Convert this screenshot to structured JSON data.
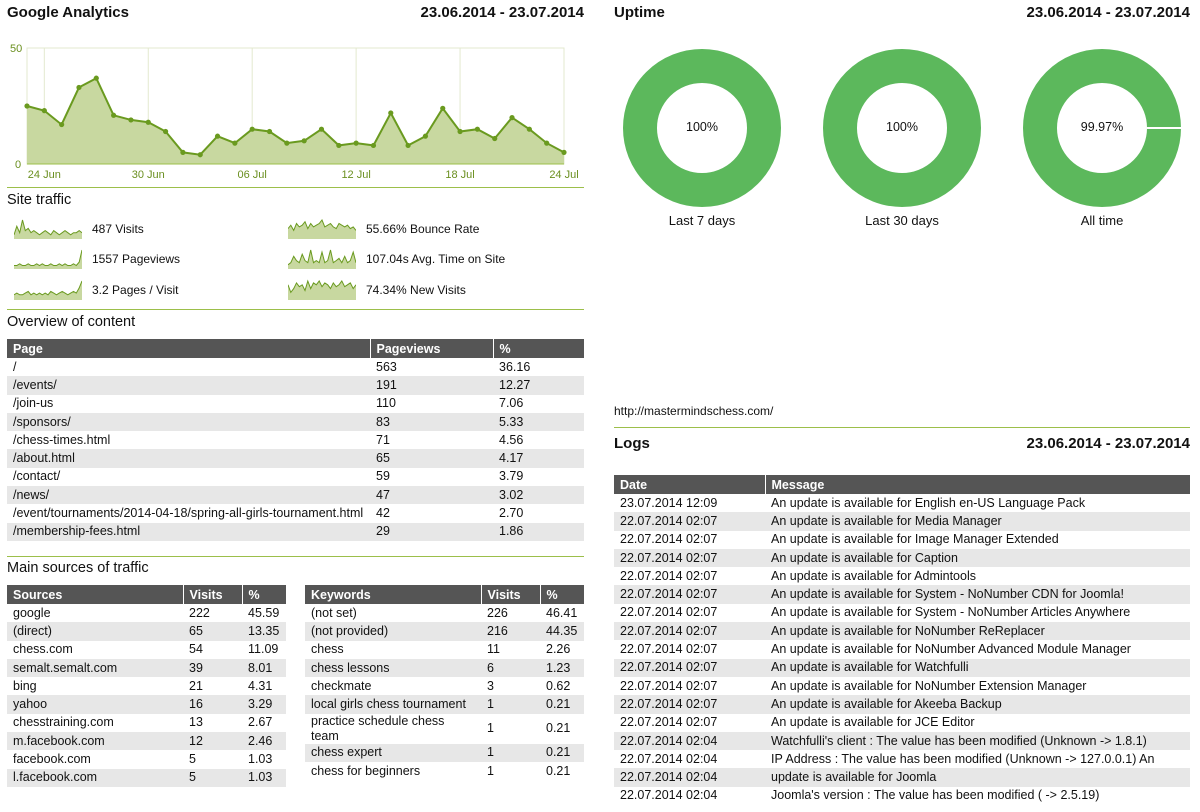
{
  "ga": {
    "title": "Google Analytics",
    "range": "23.06.2014 - 23.07.2014",
    "chart_data": {
      "type": "area",
      "x": [
        "23 Jun",
        "24 Jun",
        "25 Jun",
        "26 Jun",
        "27 Jun",
        "28 Jun",
        "29 Jun",
        "30 Jun",
        "01 Jul",
        "02 Jul",
        "03 Jul",
        "04 Jul",
        "05 Jul",
        "06 Jul",
        "07 Jul",
        "08 Jul",
        "09 Jul",
        "10 Jul",
        "11 Jul",
        "12 Jul",
        "13 Jul",
        "14 Jul",
        "15 Jul",
        "16 Jul",
        "17 Jul",
        "18 Jul",
        "19 Jul",
        "20 Jul",
        "21 Jul",
        "22 Jul",
        "23 Jul",
        "24 Jul"
      ],
      "values": [
        25,
        23,
        17,
        33,
        37,
        21,
        19,
        18,
        14,
        5,
        4,
        12,
        9,
        15,
        14,
        9,
        10,
        15,
        8,
        9,
        8,
        22,
        8,
        12,
        24,
        14,
        15,
        11,
        20,
        15,
        9,
        5
      ],
      "ylim": [
        0,
        50
      ],
      "yticks": [
        "50",
        "0"
      ],
      "xticks": [
        "24 Jun",
        "30 Jun",
        "06 Jul",
        "12 Jul",
        "18 Jul",
        "24 Jul"
      ],
      "fill": "#c8d8a0",
      "line": "#6a9a1f"
    },
    "site_traffic": {
      "title": "Site traffic",
      "stats": [
        {
          "label": "487 Visits"
        },
        {
          "label": "1557 Pageviews"
        },
        {
          "label": "3.2 Pages / Visit"
        },
        {
          "label": "55.66% Bounce Rate"
        },
        {
          "label": "107.04s Avg. Time on Site"
        },
        {
          "label": "74.34% New Visits"
        }
      ]
    },
    "overview": {
      "title": "Overview of content",
      "headers": [
        "Page",
        "Pageviews",
        "%"
      ],
      "rows": [
        [
          "/",
          "563",
          "36.16"
        ],
        [
          "/events/",
          "191",
          "12.27"
        ],
        [
          "/join-us",
          "110",
          "7.06"
        ],
        [
          "/sponsors/",
          "83",
          "5.33"
        ],
        [
          "/chess-times.html",
          "71",
          "4.56"
        ],
        [
          "/about.html",
          "65",
          "4.17"
        ],
        [
          "/contact/",
          "59",
          "3.79"
        ],
        [
          "/news/",
          "47",
          "3.02"
        ],
        [
          "/event/tournaments/2014-04-18/spring-all-girls-tournament.html",
          "42",
          "2.70"
        ],
        [
          "/membership-fees.html",
          "29",
          "1.86"
        ]
      ]
    },
    "sources": {
      "title": "Main sources of traffic",
      "headers": [
        "Sources",
        "Visits",
        "%"
      ],
      "rows": [
        [
          "google",
          "222",
          "45.59"
        ],
        [
          "(direct)",
          "65",
          "13.35"
        ],
        [
          "chess.com",
          "54",
          "11.09"
        ],
        [
          "semalt.semalt.com",
          "39",
          "8.01"
        ],
        [
          "bing",
          "21",
          "4.31"
        ],
        [
          "yahoo",
          "16",
          "3.29"
        ],
        [
          "chesstraining.com",
          "13",
          "2.67"
        ],
        [
          "m.facebook.com",
          "12",
          "2.46"
        ],
        [
          "facebook.com",
          "5",
          "1.03"
        ],
        [
          "l.facebook.com",
          "5",
          "1.03"
        ]
      ]
    },
    "keywords": {
      "headers": [
        "Keywords",
        "Visits",
        "%"
      ],
      "rows": [
        [
          "(not set)",
          "226",
          "46.41"
        ],
        [
          "(not provided)",
          "216",
          "44.35"
        ],
        [
          "chess",
          "11",
          "2.26"
        ],
        [
          "chess lessons",
          "6",
          "1.23"
        ],
        [
          "checkmate",
          "3",
          "0.62"
        ],
        [
          "local girls chess tournament",
          "1",
          "0.21"
        ],
        [
          "practice schedule chess team",
          "1",
          "0.21"
        ],
        [
          "chess expert",
          "1",
          "0.21"
        ],
        [
          "chess for beginners",
          "1",
          "0.21"
        ]
      ]
    }
  },
  "uptime": {
    "title": "Uptime",
    "range": "23.06.2014 - 23.07.2014",
    "color": "#5cb85c",
    "donuts": [
      {
        "value": 100,
        "center": "100%",
        "label": "Last 7 days"
      },
      {
        "value": 100,
        "center": "100%",
        "label": "Last 30 days"
      },
      {
        "value": 99.97,
        "center": "99.97%",
        "label": "All time"
      }
    ],
    "url": "http://mastermindschess.com/"
  },
  "logs": {
    "title": "Logs",
    "range": "23.06.2014 - 23.07.2014",
    "headers": [
      "Date",
      "Message"
    ],
    "rows": [
      [
        "23.07.2014 12:09",
        "An update is available for English en-US Language Pack"
      ],
      [
        "22.07.2014 02:07",
        "An update is available for Media Manager"
      ],
      [
        "22.07.2014 02:07",
        "An update is available for Image Manager Extended"
      ],
      [
        "22.07.2014 02:07",
        "An update is available for Caption"
      ],
      [
        "22.07.2014 02:07",
        "An update is available for Admintools"
      ],
      [
        "22.07.2014 02:07",
        "An update is available for System - NoNumber CDN for Joomla!"
      ],
      [
        "22.07.2014 02:07",
        "An update is available for System - NoNumber Articles Anywhere"
      ],
      [
        "22.07.2014 02:07",
        "An update is available for NoNumber ReReplacer"
      ],
      [
        "22.07.2014 02:07",
        "An update is available for NoNumber Advanced Module Manager"
      ],
      [
        "22.07.2014 02:07",
        "An update is available for Watchfulli"
      ],
      [
        "22.07.2014 02:07",
        "An update is available for NoNumber Extension Manager"
      ],
      [
        "22.07.2014 02:07",
        "An update is available for Akeeba Backup"
      ],
      [
        "22.07.2014 02:07",
        "An update is available for JCE Editor"
      ],
      [
        "22.07.2014 02:04",
        "Watchfulli's client : The value has been modified (Unknown -> 1.8.1)"
      ],
      [
        "22.07.2014 02:04",
        "IP Address : The value has been modified (Unknown -> 127.0.0.1) An"
      ],
      [
        "22.07.2014 02:04",
        "update is available for Joomla"
      ],
      [
        "22.07.2014 02:04",
        "Joomla's version : The value has been modified ( -> 2.5.19)"
      ]
    ]
  }
}
